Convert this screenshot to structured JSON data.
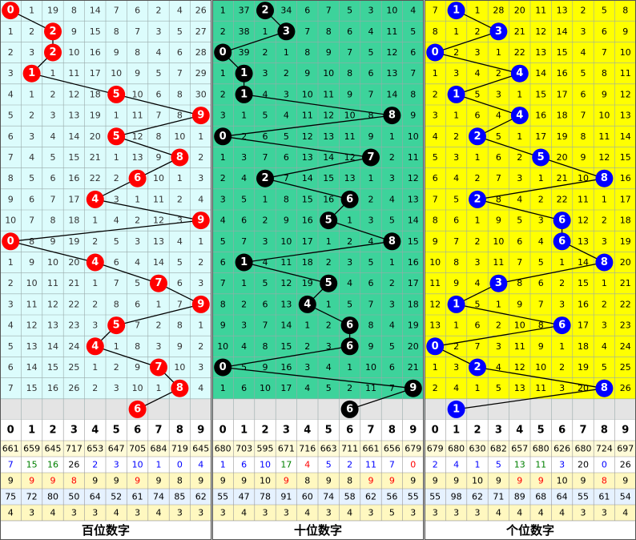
{
  "panels": [
    {
      "title": "百位数字",
      "background": "#dcfcfc",
      "ball_color": "#ff0000",
      "line_color": "#000000",
      "rows": [
        [
          0,
          1,
          19,
          8,
          14,
          7,
          6,
          2,
          4,
          26
        ],
        [
          1,
          2,
          2,
          9,
          15,
          8,
          7,
          3,
          5,
          27
        ],
        [
          2,
          3,
          2,
          10,
          16,
          9,
          8,
          4,
          6,
          28
        ],
        [
          3,
          1,
          1,
          11,
          17,
          10,
          9,
          5,
          7,
          29
        ],
        [
          4,
          1,
          2,
          12,
          18,
          5,
          10,
          6,
          8,
          30
        ],
        [
          5,
          2,
          3,
          13,
          19,
          1,
          11,
          7,
          8,
          9
        ],
        [
          6,
          3,
          4,
          14,
          20,
          5,
          12,
          8,
          10,
          1
        ],
        [
          7,
          4,
          5,
          15,
          21,
          1,
          13,
          9,
          8,
          2
        ],
        [
          8,
          5,
          6,
          16,
          22,
          2,
          6,
          10,
          1,
          3
        ],
        [
          9,
          6,
          7,
          17,
          4,
          3,
          1,
          11,
          2,
          4
        ],
        [
          10,
          7,
          8,
          18,
          1,
          4,
          2,
          12,
          3,
          9
        ],
        [
          0,
          8,
          9,
          19,
          2,
          5,
          3,
          13,
          4,
          1
        ],
        [
          1,
          9,
          10,
          20,
          4,
          6,
          4,
          14,
          5,
          2
        ],
        [
          2,
          10,
          11,
          21,
          1,
          7,
          5,
          7,
          6,
          3
        ],
        [
          3,
          11,
          12,
          22,
          2,
          8,
          6,
          1,
          7,
          9
        ],
        [
          4,
          12,
          13,
          23,
          3,
          5,
          7,
          2,
          8,
          1
        ],
        [
          5,
          13,
          14,
          24,
          4,
          1,
          8,
          3,
          9,
          2
        ],
        [
          6,
          14,
          15,
          25,
          1,
          2,
          9,
          7,
          10,
          3
        ],
        [
          7,
          15,
          16,
          26,
          2,
          3,
          10,
          1,
          8,
          4
        ]
      ],
      "draws": [
        0,
        2,
        2,
        1,
        5,
        9,
        5,
        8,
        6,
        4,
        9,
        0,
        4,
        7,
        9,
        5,
        4,
        7,
        8
      ],
      "next": 6
    },
    {
      "title": "十位数字",
      "background": "#3dd39b",
      "ball_color": "#000000",
      "line_color": "#000000",
      "rows": [
        [
          1,
          37,
          2,
          34,
          6,
          7,
          5,
          3,
          10,
          4
        ],
        [
          2,
          38,
          1,
          3,
          7,
          8,
          6,
          4,
          11,
          5
        ],
        [
          0,
          39,
          2,
          1,
          8,
          9,
          7,
          5,
          12,
          6
        ],
        [
          1,
          1,
          3,
          2,
          9,
          10,
          8,
          6,
          13,
          7
        ],
        [
          2,
          1,
          4,
          3,
          10,
          11,
          9,
          7,
          14,
          8
        ],
        [
          3,
          1,
          5,
          4,
          11,
          12,
          10,
          8,
          8,
          9
        ],
        [
          0,
          2,
          6,
          5,
          12,
          13,
          11,
          9,
          1,
          10
        ],
        [
          1,
          3,
          7,
          6,
          13,
          14,
          12,
          7,
          2,
          11
        ],
        [
          2,
          4,
          2,
          7,
          14,
          15,
          13,
          1,
          3,
          12
        ],
        [
          3,
          5,
          1,
          8,
          15,
          16,
          6,
          2,
          4,
          13
        ],
        [
          4,
          6,
          2,
          9,
          16,
          5,
          1,
          3,
          5,
          14
        ],
        [
          5,
          7,
          3,
          10,
          17,
          1,
          2,
          4,
          8,
          15
        ],
        [
          6,
          1,
          4,
          11,
          18,
          2,
          3,
          5,
          1,
          16
        ],
        [
          7,
          1,
          5,
          12,
          19,
          5,
          4,
          6,
          2,
          17
        ],
        [
          8,
          2,
          6,
          13,
          4,
          1,
          5,
          7,
          3,
          18
        ],
        [
          9,
          3,
          7,
          14,
          1,
          2,
          6,
          8,
          4,
          19
        ],
        [
          10,
          4,
          8,
          15,
          2,
          3,
          6,
          9,
          5,
          20
        ],
        [
          0,
          5,
          9,
          16,
          3,
          4,
          1,
          10,
          6,
          21
        ],
        [
          1,
          6,
          10,
          17,
          4,
          5,
          2,
          11,
          7,
          9
        ]
      ],
      "draws": [
        2,
        3,
        0,
        1,
        1,
        8,
        0,
        7,
        2,
        6,
        5,
        8,
        1,
        5,
        4,
        6,
        6,
        0,
        9
      ],
      "next": 6
    },
    {
      "title": "个位数字",
      "background": "#ffff00",
      "ball_color": "#0000ff",
      "line_color": "#000000",
      "rows": [
        [
          7,
          1,
          1,
          28,
          20,
          11,
          13,
          2,
          5,
          8
        ],
        [
          8,
          1,
          2,
          3,
          21,
          12,
          14,
          3,
          6,
          9
        ],
        [
          0,
          2,
          3,
          1,
          22,
          13,
          15,
          4,
          7,
          10
        ],
        [
          1,
          3,
          4,
          2,
          4,
          14,
          16,
          5,
          8,
          11
        ],
        [
          2,
          1,
          5,
          3,
          1,
          15,
          17,
          6,
          9,
          12
        ],
        [
          3,
          1,
          6,
          4,
          4,
          16,
          18,
          7,
          10,
          13
        ],
        [
          4,
          2,
          2,
          5,
          1,
          17,
          19,
          8,
          11,
          14
        ],
        [
          5,
          3,
          1,
          6,
          2,
          5,
          20,
          9,
          12,
          15
        ],
        [
          6,
          4,
          2,
          7,
          3,
          1,
          21,
          10,
          8,
          16
        ],
        [
          7,
          5,
          2,
          8,
          4,
          2,
          22,
          11,
          1,
          17
        ],
        [
          8,
          6,
          1,
          9,
          5,
          3,
          6,
          12,
          2,
          18
        ],
        [
          9,
          7,
          2,
          10,
          6,
          4,
          6,
          13,
          3,
          19
        ],
        [
          10,
          8,
          3,
          11,
          7,
          5,
          1,
          14,
          8,
          20
        ],
        [
          11,
          9,
          4,
          3,
          8,
          6,
          2,
          15,
          1,
          21
        ],
        [
          12,
          1,
          5,
          1,
          9,
          7,
          3,
          16,
          2,
          22
        ],
        [
          13,
          1,
          6,
          2,
          10,
          8,
          6,
          17,
          3,
          23
        ],
        [
          0,
          2,
          7,
          3,
          11,
          9,
          1,
          18,
          4,
          24
        ],
        [
          1,
          3,
          2,
          4,
          12,
          10,
          2,
          19,
          5,
          25
        ],
        [
          2,
          4,
          1,
          5,
          13,
          11,
          3,
          20,
          8,
          26
        ]
      ],
      "draws": [
        1,
        3,
        0,
        4,
        1,
        4,
        2,
        5,
        8,
        2,
        6,
        6,
        8,
        3,
        1,
        6,
        0,
        2,
        8
      ],
      "next": 1
    }
  ],
  "header": [
    0,
    1,
    2,
    3,
    4,
    5,
    6,
    7,
    8,
    9
  ],
  "stats": [
    {
      "background": "#fffbd8",
      "values": [
        661,
        659,
        645,
        717,
        653,
        647,
        705,
        684,
        719,
        645,
        680,
        703,
        595,
        671,
        716,
        663,
        711,
        661,
        656,
        679,
        679,
        680,
        630,
        682,
        657,
        680,
        626,
        680,
        724,
        697
      ]
    },
    {
      "background": "#ffffff",
      "values": [
        7,
        15,
        16,
        26,
        2,
        3,
        10,
        1,
        0,
        4,
        1,
        6,
        10,
        17,
        4,
        5,
        2,
        11,
        7,
        0,
        2,
        4,
        1,
        5,
        13,
        11,
        3,
        20,
        0,
        26
      ],
      "colors": [
        "#0000ff",
        "#008000",
        "#008000",
        "#000000",
        "#0000ff",
        "#0000ff",
        "#0000ff",
        "#0000ff",
        "#0000ff",
        "#0000ff",
        "#0000ff",
        "#0000ff",
        "#0000ff",
        "#008000",
        "#ff0000",
        "#0000ff",
        "#0000ff",
        "#0000ff",
        "#0000ff",
        "#ff0000",
        "#0000ff",
        "#0000ff",
        "#0000ff",
        "#0000ff",
        "#008000",
        "#008000",
        "#0000ff",
        "#000000",
        "#0000ff",
        "#000000"
      ]
    },
    {
      "background": "#fff8c0",
      "values": [
        9,
        9,
        9,
        8,
        9,
        9,
        9,
        9,
        8,
        9,
        9,
        9,
        10,
        9,
        8,
        9,
        8,
        9,
        9,
        9,
        9,
        9,
        10,
        9,
        9,
        9,
        10,
        9,
        8,
        9
      ],
      "colors": [
        "#000000",
        "#ff0000",
        "#ff0000",
        "#ff0000",
        "#000000",
        "#000000",
        "#ff0000",
        "#000000",
        "#000000",
        "#000000",
        "#000000",
        "#000000",
        "#000000",
        "#ff0000",
        "#000000",
        "#000000",
        "#000000",
        "#ff0000",
        "#ff0000",
        "#000000",
        "#000000",
        "#000000",
        "#000000",
        "#000000",
        "#ff0000",
        "#ff0000",
        "#000000",
        "#000000",
        "#ff0000",
        "#000000"
      ]
    },
    {
      "background": "#e6f2ff",
      "values": [
        75,
        72,
        80,
        50,
        64,
        52,
        61,
        74,
        85,
        62,
        55,
        47,
        78,
        91,
        60,
        74,
        58,
        62,
        56,
        55,
        55,
        98,
        62,
        71,
        89,
        68,
        64,
        55,
        61,
        54
      ]
    },
    {
      "background": "#fff8c0",
      "values": [
        4,
        3,
        4,
        3,
        3,
        4,
        3,
        4,
        3,
        3,
        3,
        4,
        3,
        3,
        4,
        3,
        4,
        3,
        5,
        3,
        3,
        3,
        3,
        4,
        4,
        4,
        4,
        3,
        3,
        4
      ]
    }
  ]
}
